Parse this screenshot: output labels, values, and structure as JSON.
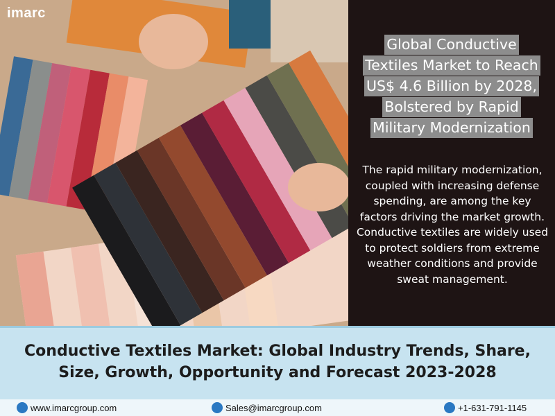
{
  "logo": "imarc",
  "headline": [
    "Global Conductive",
    "Textiles Market to Reach",
    "US$ 4.6 Billion by 2028,",
    "Bolstered by Rapid",
    "Military Modernization"
  ],
  "body": "The rapid military modernization, coupled with increasing defense spending, are among the key factors driving the market growth. Conductive textiles are widely used to protect soldiers from extreme weather conditions and provide sweat management.",
  "banner_title": "Conductive Textiles Market: Global Industry Trends, Share, Size, Growth, Opportunity and Forecast 2023-2028",
  "footer": {
    "website": "www.imarcgroup.com",
    "email": "Sales@imarcgroup.com",
    "phone": "+1-631-791-1145"
  }
}
